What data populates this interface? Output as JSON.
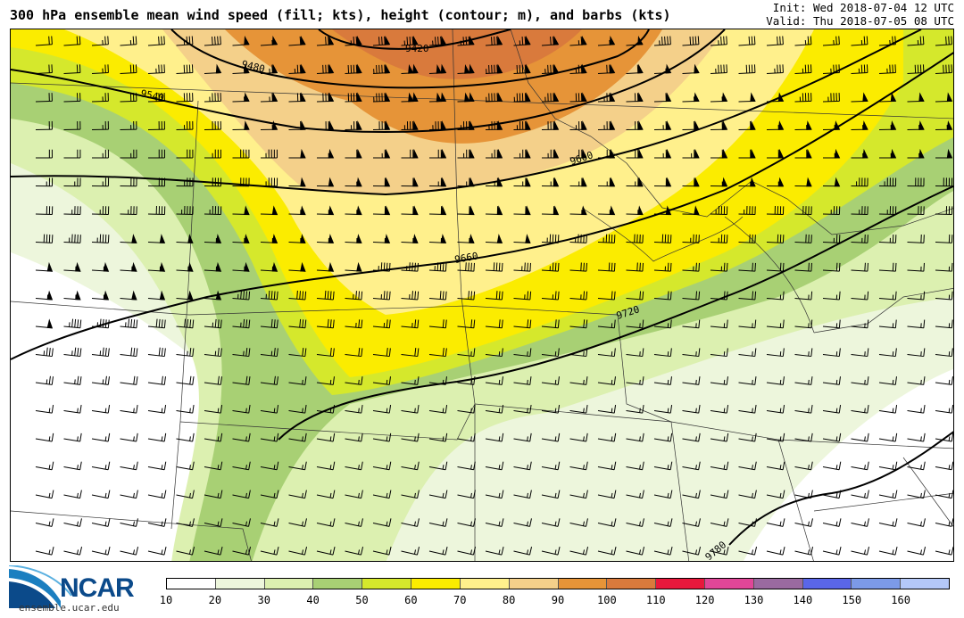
{
  "title": "300 hPa ensemble mean wind speed (fill; kts), height (contour; m), and barbs (kts)",
  "init": "Init: Wed 2018-07-04 12 UTC",
  "valid": "Valid: Thu 2018-07-05 08 UTC",
  "logo": {
    "name": "NCAR",
    "url": "ensemble.ucar.edu"
  },
  "colorbar": {
    "ticks": [
      "10",
      "20",
      "30",
      "40",
      "50",
      "60",
      "70",
      "80",
      "90",
      "100",
      "110",
      "120",
      "130",
      "140",
      "150",
      "160"
    ],
    "colors": [
      "#ffffff",
      "#edf6dc",
      "#dcf0b0",
      "#a8d074",
      "#d5e82c",
      "#fbec00",
      "#fff08c",
      "#f4d08a",
      "#e69438",
      "#d97a3c",
      "#e8183c",
      "#e04698",
      "#9a6aa0",
      "#5a66e8",
      "#7c9ae8",
      "#b4c8f8"
    ]
  },
  "contours": [
    {
      "label": "9420"
    },
    {
      "label": "9480"
    },
    {
      "label": "9540"
    },
    {
      "label": "9600"
    },
    {
      "label": "9660"
    },
    {
      "label": "9720"
    },
    {
      "label": "9780"
    }
  ]
}
